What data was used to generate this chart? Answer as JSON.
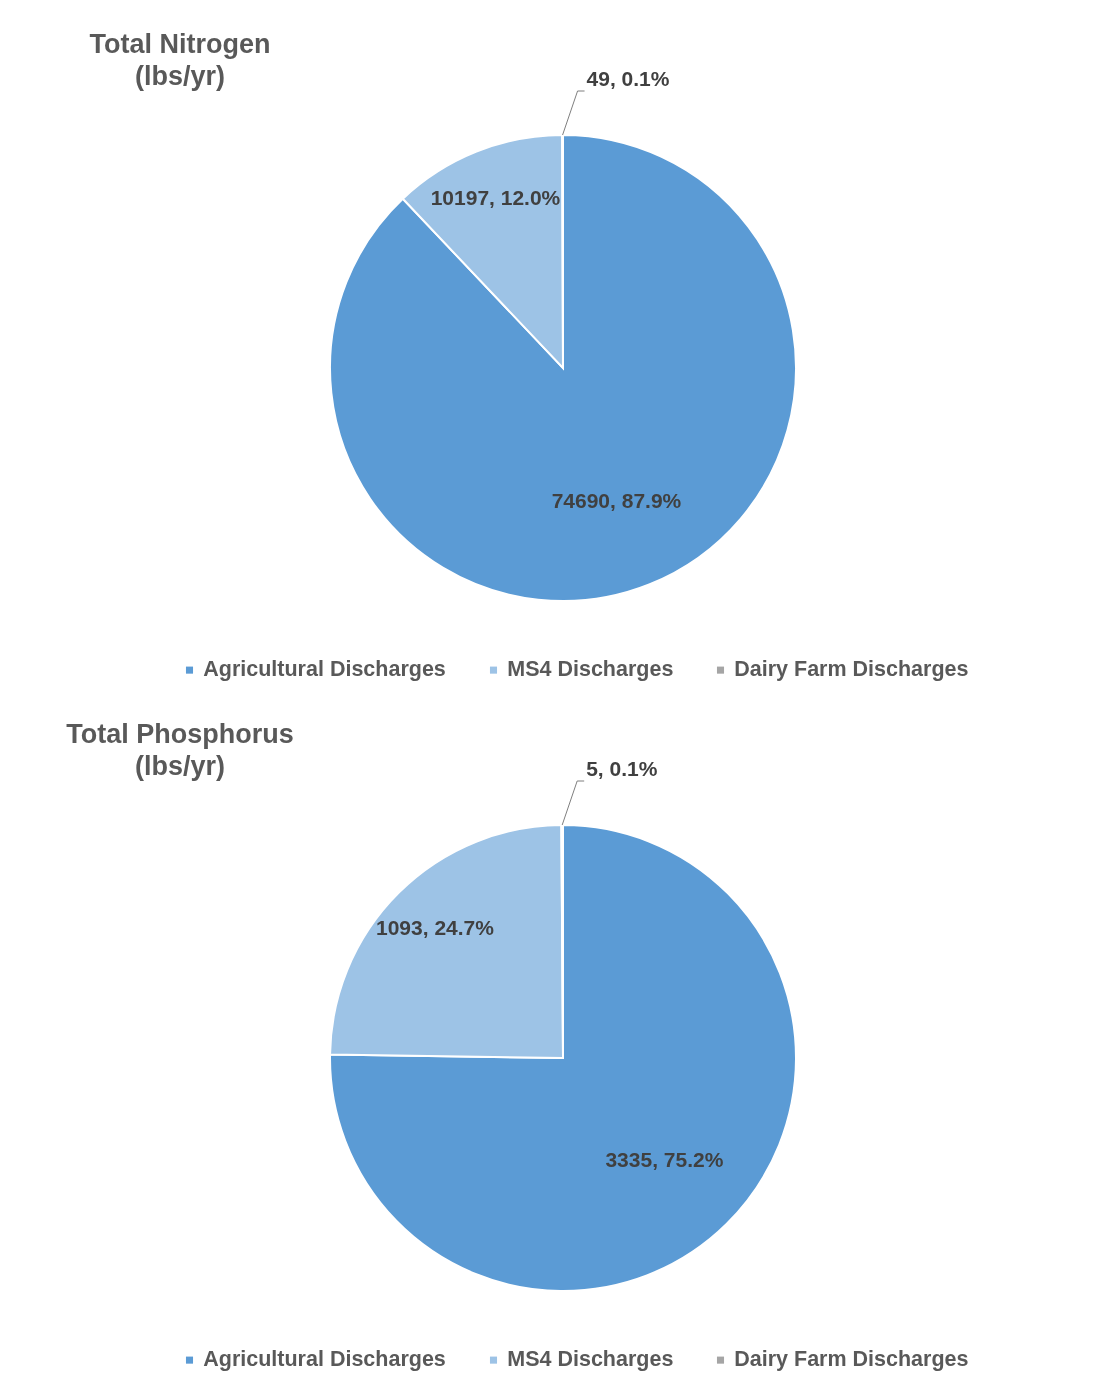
{
  "chart_data": [
    {
      "type": "pie",
      "title": "Total Nitrogen\n(lbs/yr)",
      "categories": [
        "Agricultural Discharges",
        "MS4 Discharges",
        "Dairy Farm Discharges"
      ],
      "values": [
        74690,
        10197,
        49
      ],
      "colors": [
        "#5b9bd5",
        "#9dc3e6",
        "#a5a5a5"
      ],
      "value_labels": [
        "74690, 87.9%",
        "10197, 12.0%",
        "49, 0.1%"
      ],
      "legend": "bottom"
    },
    {
      "type": "pie",
      "title": "Total Phosphorus\n(lbs/yr)",
      "categories": [
        "Agricultural Discharges",
        "MS4 Discharges",
        "Dairy Farm Discharges"
      ],
      "values": [
        3335,
        1093,
        5
      ],
      "colors": [
        "#5b9bd5",
        "#9dc3e6",
        "#a5a5a5"
      ],
      "value_labels": [
        "3335, 75.2%",
        "1093, 24.7%",
        "5, 0.1%"
      ],
      "legend": "bottom"
    }
  ]
}
